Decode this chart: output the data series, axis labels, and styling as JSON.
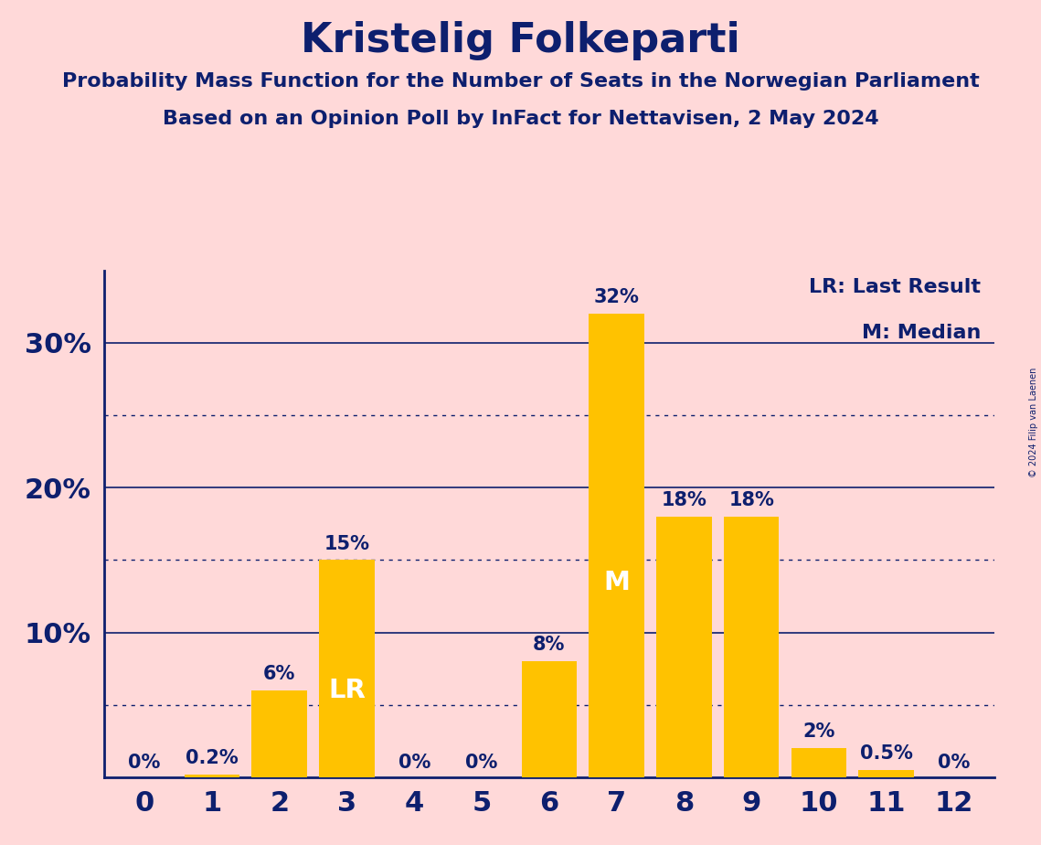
{
  "title": "Kristelig Folkeparti",
  "subtitle1": "Probability Mass Function for the Number of Seats in the Norwegian Parliament",
  "subtitle2": "Based on an Opinion Poll by InFact for Nettavisen, 2 May 2024",
  "copyright": "© 2024 Filip van Laenen",
  "seats": [
    0,
    1,
    2,
    3,
    4,
    5,
    6,
    7,
    8,
    9,
    10,
    11,
    12
  ],
  "probabilities": [
    0.0,
    0.2,
    6.0,
    15.0,
    0.0,
    0.0,
    8.0,
    32.0,
    18.0,
    18.0,
    2.0,
    0.5,
    0.0
  ],
  "prob_labels": [
    "0%",
    "0.2%",
    "6%",
    "15%",
    "0%",
    "0%",
    "8%",
    "32%",
    "18%",
    "18%",
    "2%",
    "0.5%",
    "0%"
  ],
  "bar_color": "#FFC200",
  "background_color": "#FFD9D9",
  "text_color": "#0D1F6E",
  "axis_color": "#0D1F6E",
  "grid_color": "#0D1F6E",
  "legend_lr": "LR: Last Result",
  "legend_m": "M: Median",
  "lr_seat": 3,
  "median_seat": 7,
  "ylim_max": 35,
  "solid_gridlines": [
    10,
    20,
    30
  ],
  "dotted_gridlines": [
    5,
    15,
    25
  ],
  "bar_width": 0.82
}
